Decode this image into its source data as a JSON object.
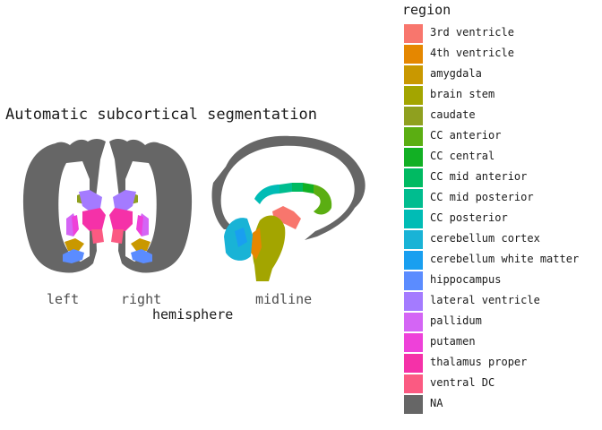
{
  "title": "Automatic subcortical segmentation",
  "x_axis": {
    "title": "hemisphere",
    "tick_labels": [
      "left",
      "right",
      "midline"
    ]
  },
  "legend": {
    "title": "region",
    "items": [
      {
        "label": "3rd ventricle",
        "color": "#F8766D"
      },
      {
        "label": "4th ventricle",
        "color": "#E58700"
      },
      {
        "label": "amygdala",
        "color": "#C99800"
      },
      {
        "label": "brain stem",
        "color": "#A3A500"
      },
      {
        "label": "caudate",
        "color": "#8FA01F"
      },
      {
        "label": "CC anterior",
        "color": "#5BAE12"
      },
      {
        "label": "CC central",
        "color": "#12B024"
      },
      {
        "label": "CC mid anterior",
        "color": "#00BA62"
      },
      {
        "label": "CC mid posterior",
        "color": "#00BD8F"
      },
      {
        "label": "CC posterior",
        "color": "#00BCB5"
      },
      {
        "label": "cerebellum cortex",
        "color": "#19B3D6"
      },
      {
        "label": "cerebellum white matter",
        "color": "#199FF0"
      },
      {
        "label": "hippocampus",
        "color": "#5B8CFF"
      },
      {
        "label": "lateral ventricle",
        "color": "#A47BFF"
      },
      {
        "label": "pallidum",
        "color": "#D465F5"
      },
      {
        "label": "putamen",
        "color": "#EE41D9"
      },
      {
        "label": "thalamus proper",
        "color": "#F531A8"
      },
      {
        "label": "ventral DC",
        "color": "#FB5A82"
      },
      {
        "label": "NA",
        "color": "#666666"
      }
    ]
  },
  "panels": [
    "coronal-slice",
    "sagittal-slice"
  ]
}
